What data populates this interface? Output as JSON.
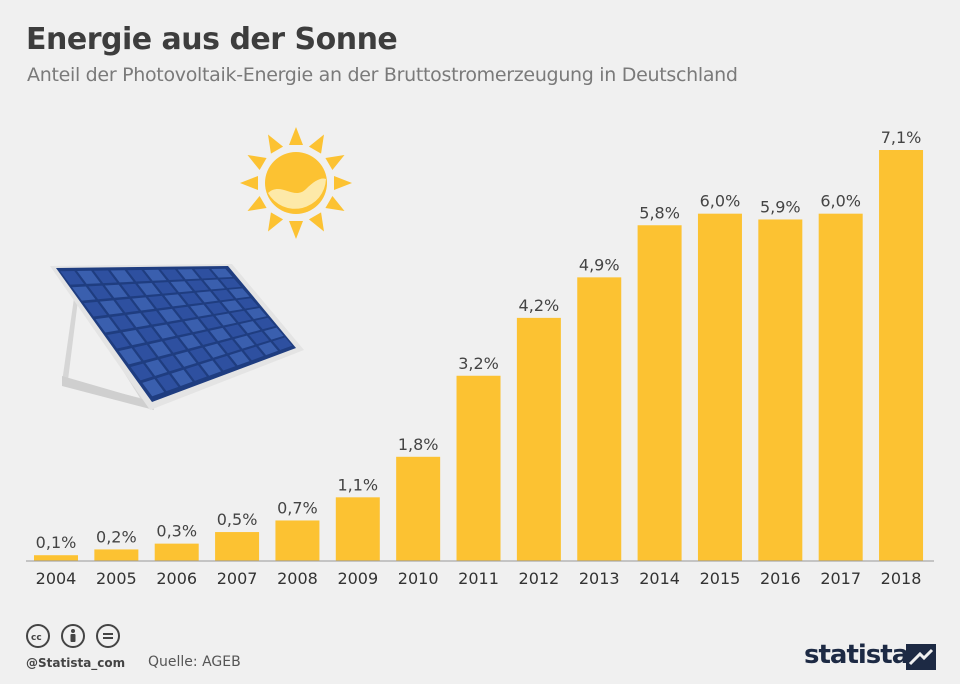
{
  "header": {
    "title": "Energie aus der Sonne",
    "subtitle": "Anteil der Photovoltaik-Energie an der Bruttostromerzeugung in Deutschland"
  },
  "chart_data": {
    "type": "bar",
    "categories": [
      "2004",
      "2005",
      "2006",
      "2007",
      "2008",
      "2009",
      "2010",
      "2011",
      "2012",
      "2013",
      "2014",
      "2015",
      "2016",
      "2017",
      "2018"
    ],
    "values": [
      0.1,
      0.2,
      0.3,
      0.5,
      0.7,
      1.1,
      1.8,
      3.2,
      4.2,
      4.9,
      5.8,
      6.0,
      5.9,
      6.0,
      7.1
    ],
    "value_labels": [
      "0,1%",
      "0,2%",
      "0,3%",
      "0,5%",
      "0,7%",
      "1,1%",
      "1,8%",
      "3,2%",
      "4,2%",
      "4,9%",
      "5,8%",
      "6,0%",
      "5,9%",
      "6,0%",
      "7,1%"
    ],
    "ylim": [
      0,
      7.1
    ],
    "grid": false,
    "bar_color": "#fcc232"
  },
  "footer": {
    "handle": "@Statista_com",
    "source": "Quelle: AGEB",
    "brand": "statista",
    "license_icons": [
      "cc-icon",
      "by-icon",
      "nd-icon"
    ]
  },
  "colors": {
    "background": "#f0f0f0",
    "title": "#3d3d3d",
    "subtitle": "#7a7a7a",
    "bar": "#fcc232",
    "brand": "#1d2a44"
  }
}
